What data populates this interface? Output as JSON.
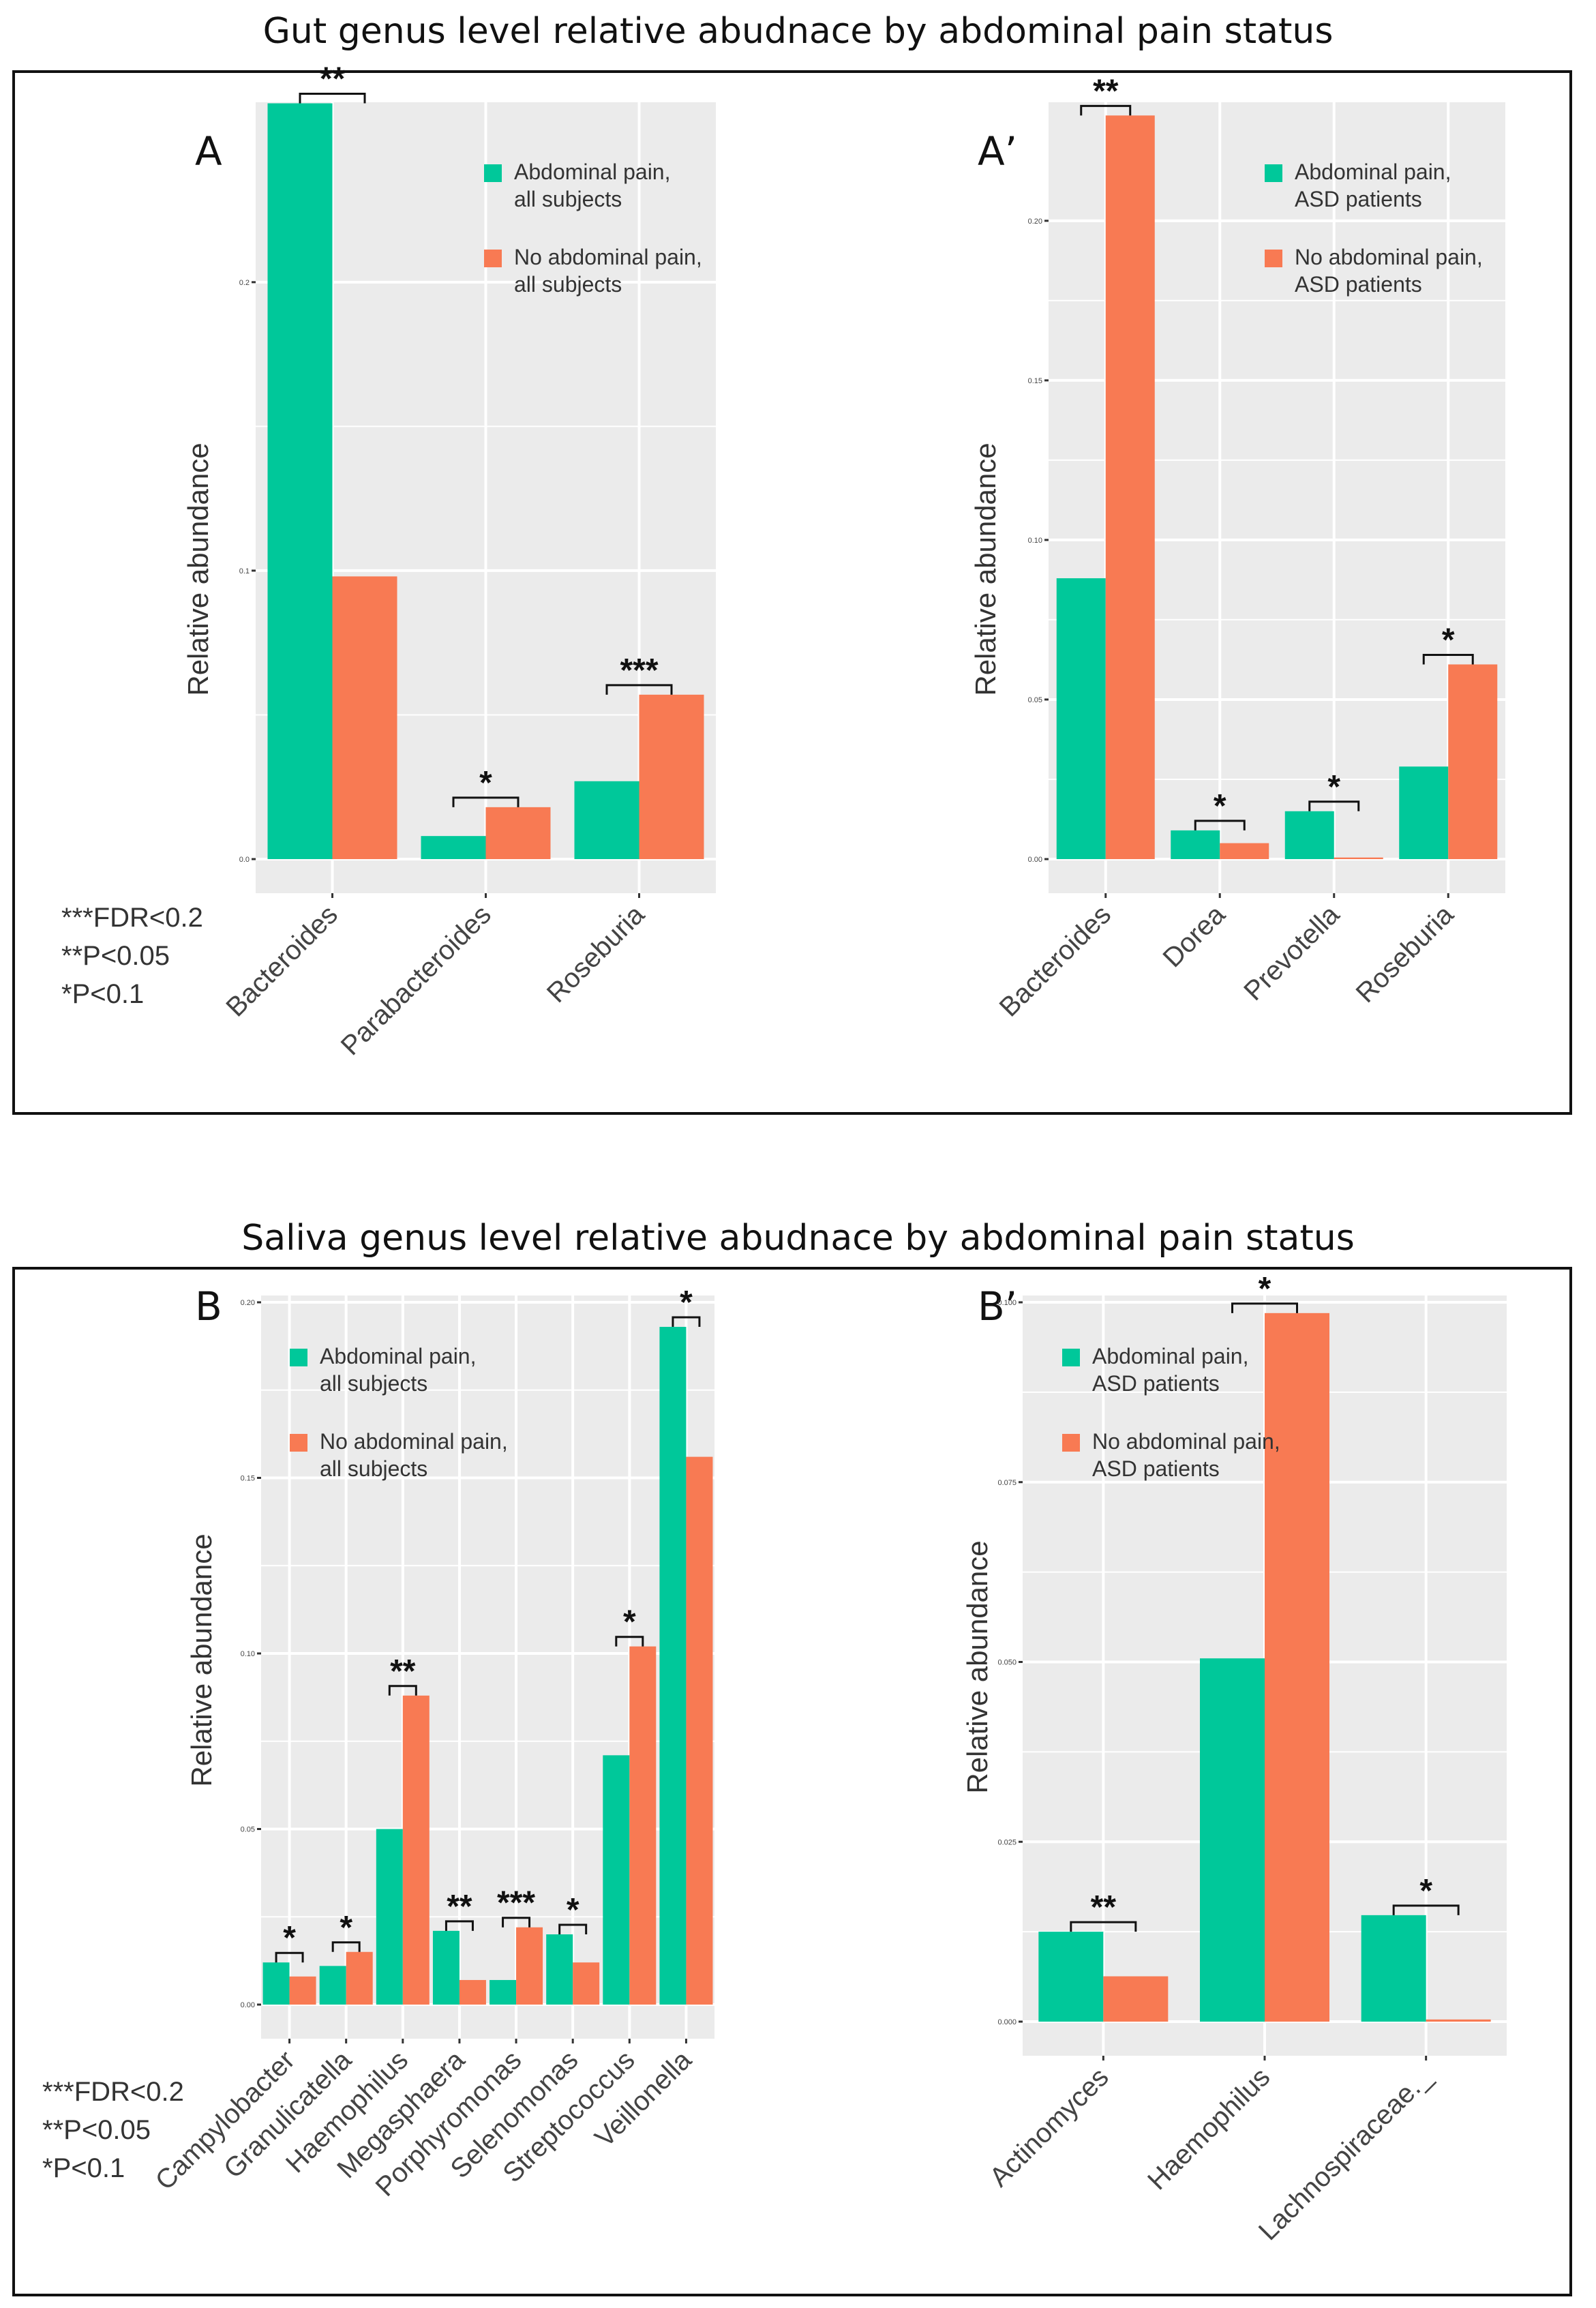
{
  "titles": {
    "gut": "Gut genus level relative abudnace by abdominal pain status",
    "saliva": "Saliva genus level relative abudnace by abdominal pain status"
  },
  "panels": {
    "A": "A",
    "A2": "A’",
    "B": "B",
    "B2": "B’"
  },
  "footnotes": {
    "line1": "***FDR<0.2",
    "line2": "**P<0.05",
    "line3": "*P<0.1"
  },
  "colors": {
    "pain": "#00C89A",
    "nopain": "#F87A53",
    "panel_bg": "#EBEBEB",
    "grid": "#FFFFFF"
  },
  "chart_data": [
    {
      "id": "A",
      "type": "bar",
      "ylabel": "Relative abundance",
      "ylim": [
        0,
        0.26
      ],
      "yticks": [
        0,
        0.1,
        0.2
      ],
      "yticklabels": [
        "0.0",
        "0.1",
        "0.2"
      ],
      "categories": [
        "Bacteroides",
        "Parabacteroides",
        "Roseburia"
      ],
      "series": [
        {
          "name": "Abdominal pain, all subjects",
          "legend_lines": [
            "Abdominal pain,",
            "all subjects"
          ],
          "values": [
            0.262,
            0.008,
            0.027
          ]
        },
        {
          "name": "No abdominal pain, all subjects",
          "legend_lines": [
            "No abdominal pain,",
            "all subjects"
          ],
          "values": [
            0.098,
            0.018,
            0.057
          ]
        }
      ],
      "significance": [
        "**",
        "*",
        "***"
      ]
    },
    {
      "id": "A2",
      "type": "bar",
      "ylabel": "Relative abundance",
      "ylim": [
        0,
        0.235
      ],
      "yticks": [
        0,
        0.05,
        0.1,
        0.15,
        0.2
      ],
      "yticklabels": [
        "0.00",
        "0.05",
        "0.10",
        "0.15",
        "0.20"
      ],
      "categories": [
        "Bacteroides",
        "Dorea",
        "Prevotella",
        "Roseburia"
      ],
      "series": [
        {
          "name": "Abdominal pain, ASD patients",
          "legend_lines": [
            "Abdominal pain,",
            "ASD patients"
          ],
          "values": [
            0.088,
            0.009,
            0.015,
            0.029
          ]
        },
        {
          "name": "No abdominal pain, ASD patients",
          "legend_lines": [
            "No abdominal pain,",
            "ASD patients"
          ],
          "values": [
            0.233,
            0.005,
            0.0005,
            0.061
          ]
        }
      ],
      "significance": [
        "**",
        "*",
        "*",
        "*"
      ]
    },
    {
      "id": "B",
      "type": "bar",
      "ylabel": "Relative abundance",
      "ylim": [
        0,
        0.2
      ],
      "yticks": [
        0,
        0.05,
        0.1,
        0.15,
        0.2
      ],
      "yticklabels": [
        "0.00",
        "0.05",
        "0.10",
        "0.15",
        "0.20"
      ],
      "categories": [
        "Campylobacter",
        "Granulicatella",
        "Haemophilus",
        "Megasphaera",
        "Porphyromonas",
        "Selenomonas",
        "Streptococcus",
        "Veillonella"
      ],
      "series": [
        {
          "name": "Abdominal pain, all subjects",
          "legend_lines": [
            "Abdominal pain,",
            "all subjects"
          ],
          "values": [
            0.012,
            0.011,
            0.05,
            0.021,
            0.007,
            0.02,
            0.071,
            0.193
          ]
        },
        {
          "name": "No abdominal pain, all subjects",
          "legend_lines": [
            "No abdominal pain,",
            "all subjects"
          ],
          "values": [
            0.008,
            0.015,
            0.088,
            0.007,
            0.022,
            0.012,
            0.102,
            0.156
          ]
        }
      ],
      "significance": [
        "*",
        "*",
        "**",
        "**",
        "***",
        "*",
        "*",
        "*"
      ]
    },
    {
      "id": "B2",
      "type": "bar",
      "ylabel": "Relative abundance",
      "ylim": [
        0,
        0.1
      ],
      "yticks": [
        0,
        0.025,
        0.05,
        0.075,
        0.1
      ],
      "yticklabels": [
        "0.000",
        "0.025",
        "0.050",
        "0.075",
        "0.100"
      ],
      "categories": [
        "Actinomyces",
        "Haemophilus",
        "Lachnospiraceae._"
      ],
      "series": [
        {
          "name": "Abdominal pain, ASD patients",
          "legend_lines": [
            "Abdominal pain,",
            "ASD patients"
          ],
          "values": [
            0.0125,
            0.0505,
            0.0148
          ]
        },
        {
          "name": "No abdominal pain, ASD patients",
          "legend_lines": [
            "No abdominal pain,",
            "ASD patients"
          ],
          "values": [
            0.0063,
            0.0985,
            0.0003
          ]
        }
      ],
      "significance": [
        "**",
        "*",
        "*"
      ]
    }
  ]
}
